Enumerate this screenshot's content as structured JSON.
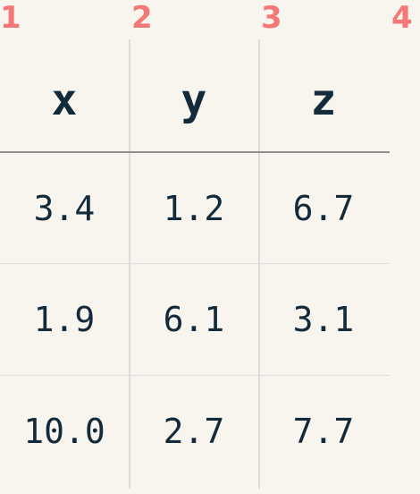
{
  "column_numbers": [
    "1",
    "2",
    "3",
    "4"
  ],
  "table": {
    "headers": [
      "x",
      "y",
      "z"
    ],
    "rows": [
      [
        "3.4",
        "1.2",
        "6.7"
      ],
      [
        "1.9",
        "6.1",
        "3.1"
      ],
      [
        "10.0",
        "2.7",
        "7.7"
      ]
    ]
  },
  "colors": {
    "background": "#f8f5ef",
    "numbers": "#f47878",
    "text": "#132a3a",
    "grid": "#dcdcdc",
    "header_rule": "#8f8f8f"
  }
}
